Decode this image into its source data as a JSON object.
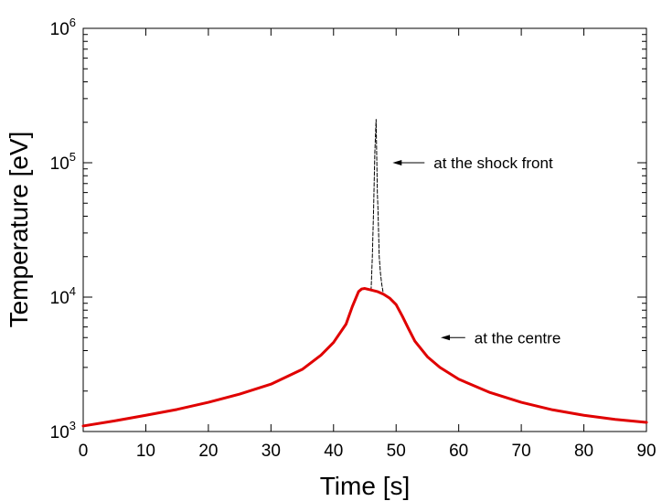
{
  "chart_data": {
    "type": "line",
    "xlabel": "Time [s]",
    "ylabel": "Temperature [eV]",
    "xlim": [
      0,
      90
    ],
    "ylim": [
      1000,
      1000000
    ],
    "yscale": "log",
    "grid": false,
    "xticks": [
      0,
      10,
      20,
      30,
      40,
      50,
      60,
      70,
      80,
      90
    ],
    "yticks": [
      {
        "value": 1000,
        "base": "10",
        "exp": "3"
      },
      {
        "value": 10000,
        "base": "10",
        "exp": "4"
      },
      {
        "value": 100000,
        "base": "10",
        "exp": "5"
      },
      {
        "value": 1000000,
        "base": "10",
        "exp": "6"
      }
    ],
    "series": [
      {
        "name": "at the centre",
        "color": "#e00000",
        "style": "solid",
        "x": [
          0,
          5,
          10,
          15,
          20,
          25,
          30,
          35,
          38,
          40,
          42,
          43,
          44,
          44.5,
          45,
          46,
          47,
          48,
          49,
          50,
          51,
          52,
          53,
          55,
          57,
          60,
          65,
          70,
          75,
          80,
          85,
          90
        ],
        "y": [
          1100,
          1200,
          1320,
          1460,
          1650,
          1900,
          2250,
          2900,
          3700,
          4600,
          6300,
          8500,
          11000,
          11500,
          11600,
          11300,
          11000,
          10500,
          9800,
          8800,
          7200,
          5800,
          4700,
          3600,
          3000,
          2450,
          1950,
          1650,
          1450,
          1320,
          1230,
          1170
        ]
      },
      {
        "name": "at the shock front",
        "color": "#000000",
        "style": "dashed",
        "x": [
          46.0,
          46.2,
          46.4,
          46.6,
          46.8,
          47.0,
          47.1,
          47.3,
          47.5,
          47.7,
          47.9
        ],
        "y": [
          11200,
          20000,
          45000,
          120000,
          210000,
          60000,
          45000,
          20000,
          15000,
          12500,
          11000
        ]
      }
    ],
    "annotations": [
      {
        "text": "at the shock front",
        "arrow_to": [
          46.8,
          100000
        ],
        "text_at": [
          56,
          100000
        ]
      },
      {
        "text": "at the centre",
        "arrow_to": [
          54.5,
          5000
        ],
        "text_at": [
          62.5,
          5000
        ]
      }
    ]
  }
}
